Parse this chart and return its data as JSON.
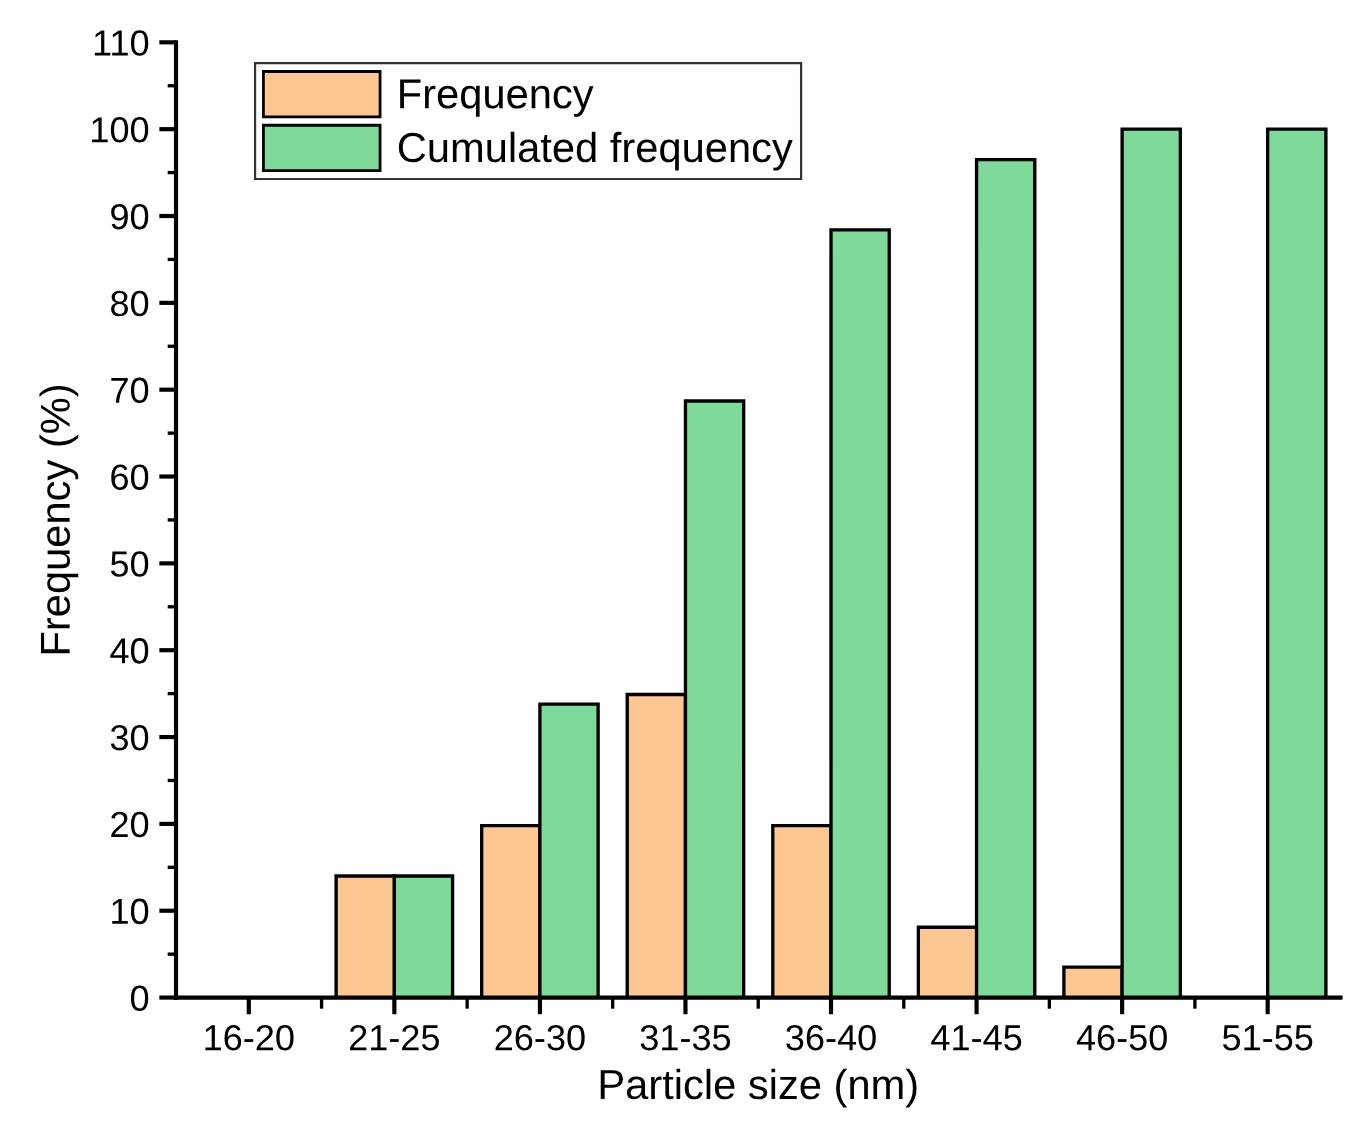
{
  "chart_data": {
    "type": "bar",
    "xlabel": "Particle size (nm)",
    "ylabel": "Frequency (%)",
    "categories": [
      "16-20",
      "21-25",
      "26-30",
      "31-35",
      "36-40",
      "41-45",
      "46-50",
      "51-55"
    ],
    "series": [
      {
        "name": "Frequency",
        "color": "#fdc794",
        "values": [
          0,
          14,
          19.8,
          34.9,
          19.8,
          8.1,
          3.5,
          0
        ]
      },
      {
        "name": "Cumulated frequency",
        "color": "#7fd99a",
        "values": [
          0,
          14,
          33.8,
          68.7,
          88.4,
          96.5,
          100,
          100
        ]
      }
    ],
    "ylim": [
      0,
      110
    ],
    "yticks": [
      0,
      10,
      20,
      30,
      40,
      50,
      60,
      70,
      80,
      90,
      100,
      110
    ],
    "legend": "top left",
    "grid": false
  }
}
